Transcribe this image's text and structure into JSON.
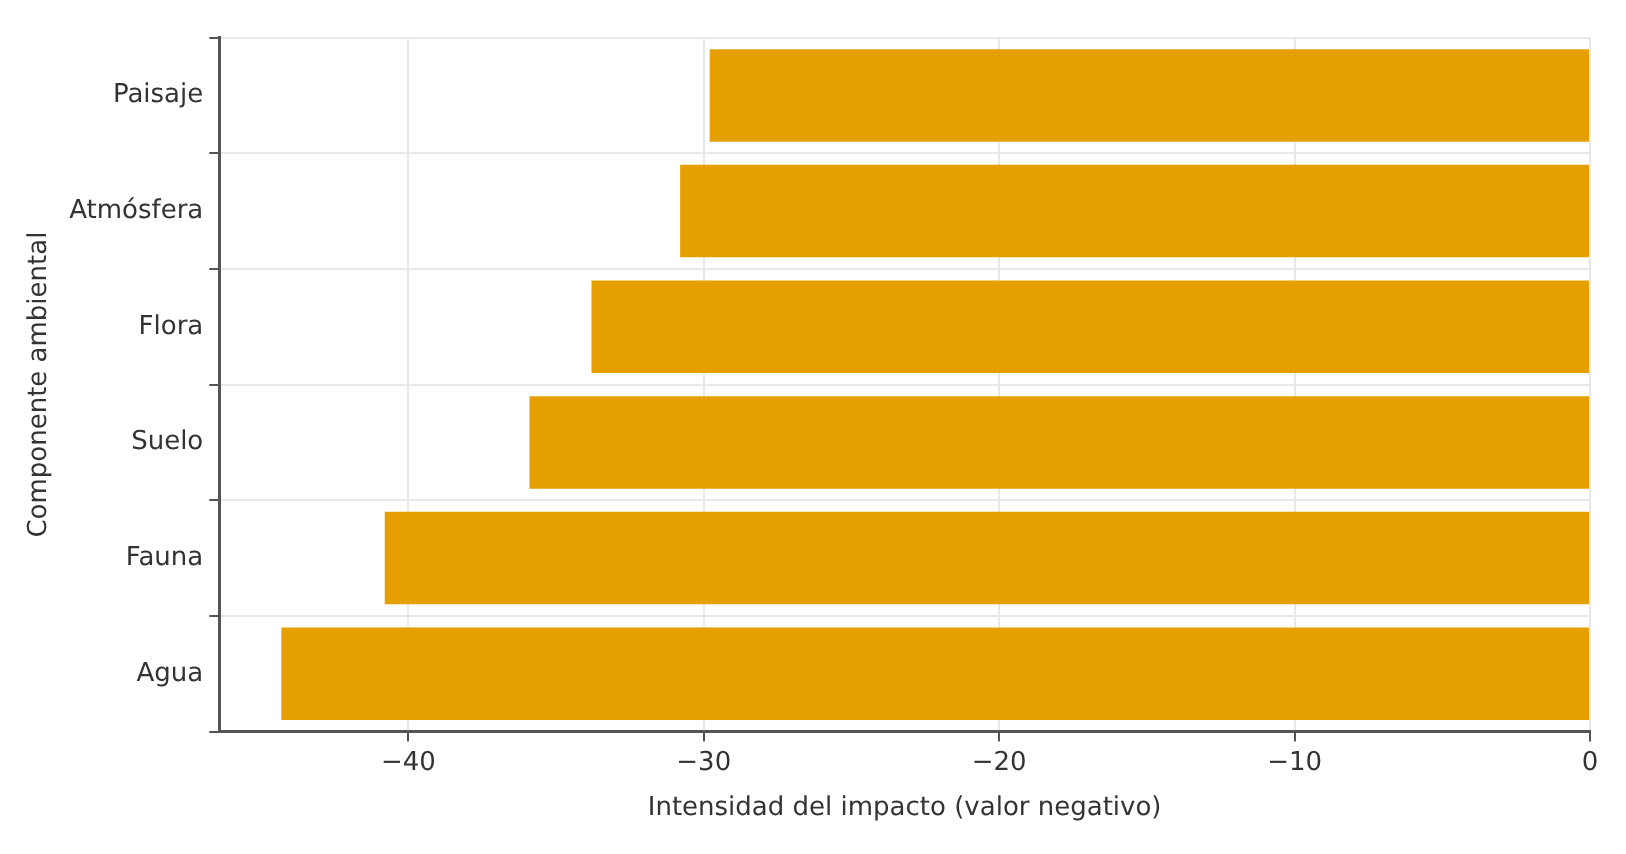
{
  "chart_data": {
    "type": "bar",
    "orientation": "horizontal",
    "xlabel": "Intensidad del impacto (valor negativo)",
    "ylabel": "Componente ambiental",
    "categories": [
      "Paisaje",
      "Atmósfera",
      "Flora",
      "Suelo",
      "Fauna",
      "Agua"
    ],
    "values": [
      -29.8,
      -30.8,
      -33.8,
      -35.9,
      -40.8,
      -44.3
    ],
    "color": "#e5a000",
    "xlim": [
      -46.4,
      0
    ],
    "xticks": [
      -40,
      -30,
      -20,
      -10,
      0
    ],
    "grid": true
  }
}
